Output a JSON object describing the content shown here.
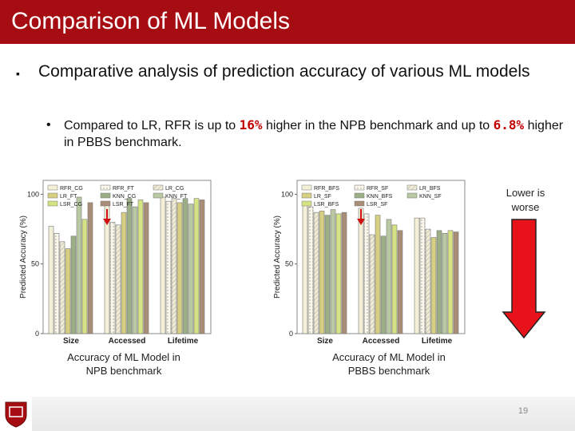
{
  "slide": {
    "title": "Comparison of ML Models",
    "bullet1": "Comparative analysis of prediction accuracy of various ML models",
    "bullet2_parts": [
      "Compared to LR, RFR is up to ",
      "16%",
      " higher in the NPB benchmark and up to ",
      "6.8%",
      " higher in PBBS benchmark."
    ],
    "caption_npb": "Accuracy of ML Model in NPB benchmark",
    "caption_pbbs": "Accuracy of ML Model in PBBS benchmark",
    "lower_note": "Lower is worse",
    "page_number": "19",
    "colors": {
      "title_bar": "#a50d12",
      "arrow": "#e8121a",
      "highlight": "#c00000"
    }
  },
  "chart_data": [
    {
      "type": "bar",
      "ylabel": "Predicted Accuracy (%)",
      "yticks": [
        0,
        50,
        100
      ],
      "ylim": [
        0,
        110
      ],
      "categories": [
        "Size",
        "Accessed",
        "Lifetime"
      ],
      "legend_position": "top",
      "series": [
        {
          "name": "RFR_CG",
          "color": "#f4f0d8",
          "hatch": "",
          "values": [
            77,
            95,
            98
          ]
        },
        {
          "name": "RFR_FT",
          "color": "#fbf7ea",
          "hatch": "dots",
          "values": [
            72,
            80,
            95
          ]
        },
        {
          "name": "LR_CG",
          "color": "#f0ecd4",
          "hatch": "lines",
          "values": [
            66,
            78,
            97
          ]
        },
        {
          "name": "LR_FT",
          "color": "#d7cf82",
          "hatch": "",
          "values": [
            61,
            87,
            94
          ]
        },
        {
          "name": "KNN_CG",
          "color": "#9cae86",
          "hatch": "",
          "values": [
            70,
            97,
            97
          ]
        },
        {
          "name": "KNN_FT",
          "color": "#b9c9a4",
          "hatch": "",
          "values": [
            98,
            91,
            93
          ]
        },
        {
          "name": "LSR_CG",
          "color": "#d6e382",
          "hatch": "",
          "values": [
            82,
            96,
            97
          ]
        },
        {
          "name": "LSR_FT",
          "color": "#a88e77",
          "hatch": "",
          "values": [
            94,
            94,
            96
          ]
        }
      ]
    },
    {
      "type": "bar",
      "ylabel": "Predicted Accuracy (%)",
      "yticks": [
        0,
        50,
        100
      ],
      "ylim": [
        0,
        110
      ],
      "categories": [
        "Size",
        "Accessed",
        "Lifetime"
      ],
      "legend_position": "top",
      "series": [
        {
          "name": "RFR_BFS",
          "color": "#f4f0d8",
          "hatch": "",
          "values": [
            92,
            90,
            83
          ]
        },
        {
          "name": "RFR_SF",
          "color": "#fbf7ea",
          "hatch": "dots",
          "values": [
            91,
            86,
            83
          ]
        },
        {
          "name": "LR_BFS",
          "color": "#f0ecd4",
          "hatch": "lines",
          "values": [
            87,
            71,
            75
          ]
        },
        {
          "name": "LR_SF",
          "color": "#d7cf82",
          "hatch": "",
          "values": [
            88,
            85,
            69
          ]
        },
        {
          "name": "KNN_BFS",
          "color": "#9cae86",
          "hatch": "",
          "values": [
            85,
            70,
            74
          ]
        },
        {
          "name": "KNN_SF",
          "color": "#b9c9a4",
          "hatch": "",
          "values": [
            89,
            82,
            72
          ]
        },
        {
          "name": "LSR_BFS",
          "color": "#d6e382",
          "hatch": "",
          "values": [
            86,
            78,
            74
          ]
        },
        {
          "name": "LSR_SF",
          "color": "#a88e77",
          "hatch": "",
          "values": [
            87,
            74,
            73
          ]
        }
      ]
    }
  ]
}
